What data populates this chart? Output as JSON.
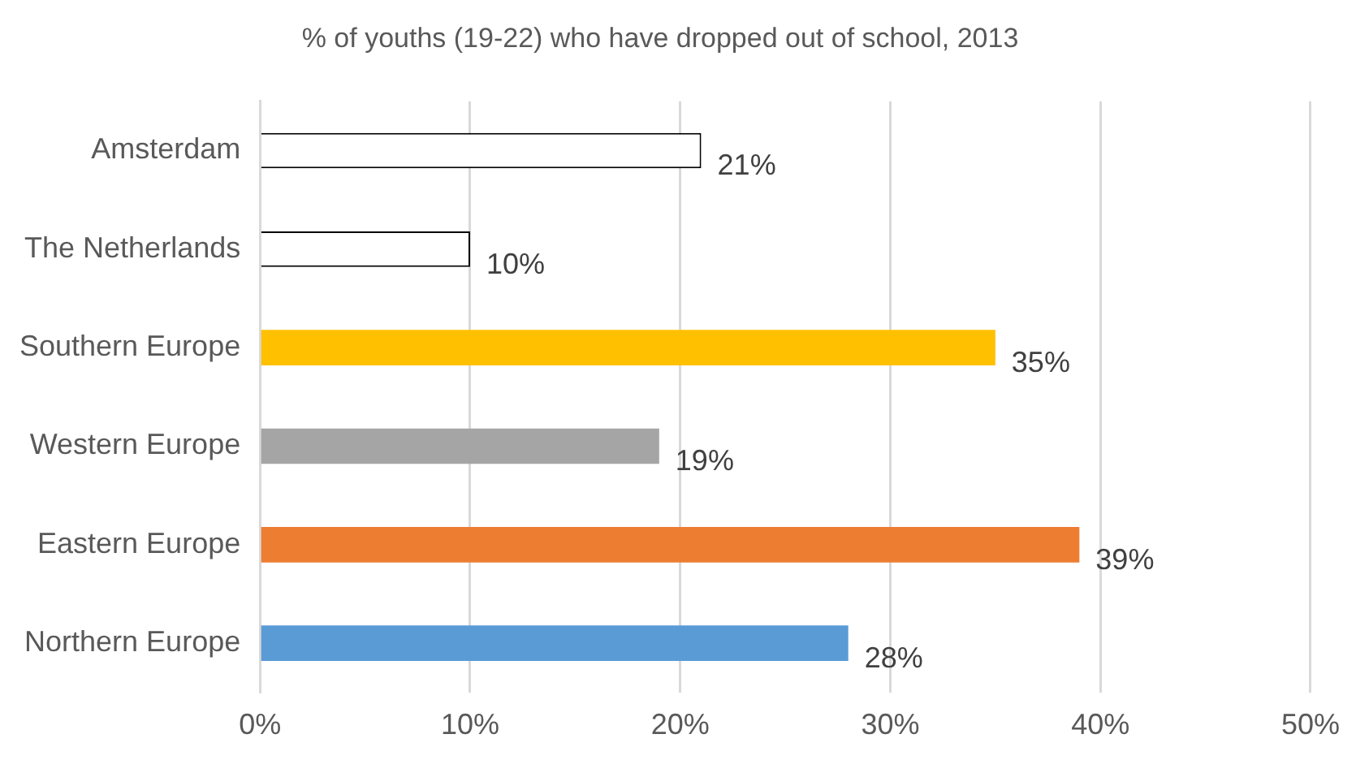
{
  "chart_data": {
    "type": "bar",
    "orientation": "horizontal",
    "title": "% of youths (19-22) who have dropped out of school, 2013",
    "categories": [
      "Amsterdam",
      "The Netherlands",
      "Southern Europe",
      "Western Europe",
      "Eastern Europe",
      "Northern Europe"
    ],
    "values": [
      21,
      10,
      35,
      19,
      39,
      28
    ],
    "colors": [
      "#ffffff",
      "#ffffff",
      "#ffc000",
      "#a5a5a5",
      "#ed7d31",
      "#5b9bd5"
    ],
    "value_labels": [
      "21%",
      "10%",
      "35%",
      "19%",
      "39%",
      "28%"
    ],
    "xlim": [
      0,
      50
    ],
    "xticks": [
      {
        "value": 0,
        "label": "0%"
      },
      {
        "value": 10,
        "label": "10%"
      },
      {
        "value": 20,
        "label": "20%"
      },
      {
        "value": 30,
        "label": "30%"
      },
      {
        "value": 40,
        "label": "40%"
      },
      {
        "value": 50,
        "label": "50%"
      }
    ],
    "grid": "x",
    "legend": false
  }
}
